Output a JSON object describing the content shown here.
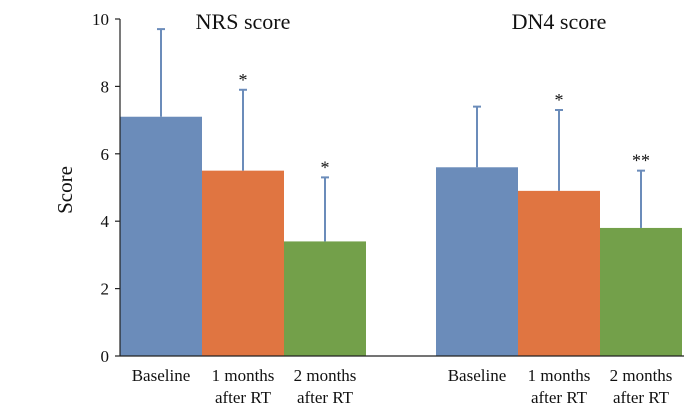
{
  "chart_data": {
    "type": "bar",
    "ylabel": "Score",
    "ylim": [
      0,
      10
    ],
    "yticks": [
      "0",
      "2",
      "4",
      "6",
      "8",
      "10"
    ],
    "grid": false,
    "legend": "none",
    "colors": {
      "baseline": "#6b8cba",
      "one_month": "#e07541",
      "two_months": "#73a04a",
      "error_bar": "#6b8cba",
      "axis": "#222222"
    },
    "groups": [
      {
        "title": "NRS score",
        "categories": [
          {
            "lines": [
              "Baseline"
            ],
            "value": 7.1,
            "error_upper": 9.7,
            "significance": ""
          },
          {
            "lines": [
              "1 months",
              "after RT"
            ],
            "value": 5.5,
            "error_upper": 7.9,
            "significance": "*"
          },
          {
            "lines": [
              "2 months",
              "after RT"
            ],
            "value": 3.4,
            "error_upper": 5.3,
            "significance": "*"
          }
        ]
      },
      {
        "title": "DN4 score",
        "categories": [
          {
            "lines": [
              "Baseline"
            ],
            "value": 5.6,
            "error_upper": 7.4,
            "significance": ""
          },
          {
            "lines": [
              "1 months",
              "after RT"
            ],
            "value": 4.9,
            "error_upper": 7.3,
            "significance": "*"
          },
          {
            "lines": [
              "2 months",
              "after RT"
            ],
            "value": 3.8,
            "error_upper": 5.5,
            "significance": "**"
          }
        ]
      }
    ]
  }
}
